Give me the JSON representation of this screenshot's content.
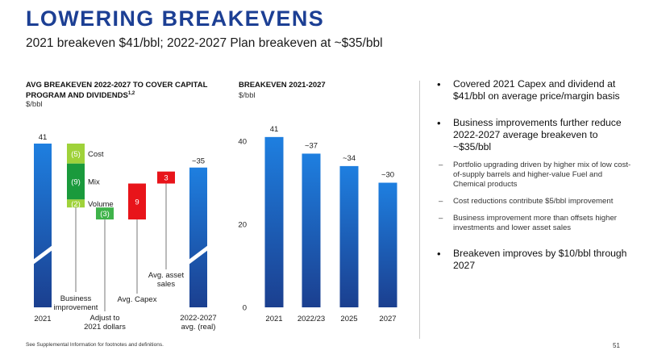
{
  "header": {
    "title": "LOWERING BREAKEVENS",
    "subtitle": "2021 breakeven $41/bbl; 2022-2027 Plan breakeven at ~$35/bbl"
  },
  "colors": {
    "accent": "#1c3f94",
    "bar_top": "#1e7fe0",
    "bar_bottom": "#1b3f8f",
    "green_dark": "#1a9a3c",
    "green_mid": "#3fb34a",
    "green_light": "#9fd23a",
    "red": "#e8141a"
  },
  "chart_data": [
    {
      "type": "waterfall",
      "title": "AVG BREAKEVEN 2022-2027 TO COVER CAPITAL PROGRAM AND DIVIDENDS",
      "title_superscript": "1,2",
      "ylabel": "$/bbl",
      "ylim": [
        0,
        41
      ],
      "steps": [
        {
          "label": "2021",
          "value": 41,
          "value_label": "41",
          "kind": "total"
        },
        {
          "label": "Business improvement",
          "value": -16,
          "kind": "decrease",
          "components": [
            {
              "name": "Cost",
              "value": -5,
              "value_label": "(5)"
            },
            {
              "name": "Mix",
              "value": -9,
              "value_label": "(9)"
            },
            {
              "name": "Volume",
              "value": -2,
              "value_label": "(2)"
            }
          ]
        },
        {
          "label": "Adjust to 2021 dollars",
          "value": -3,
          "value_label": "(3)",
          "kind": "decrease"
        },
        {
          "label": "Avg. Capex",
          "value": 9,
          "value_label": "9",
          "kind": "increase"
        },
        {
          "label": "Avg. asset sales",
          "value": 3,
          "value_label": "3",
          "kind": "increase"
        },
        {
          "label": "2022-2027 avg. (real)",
          "value": 35,
          "value_label": "~35",
          "kind": "total"
        }
      ]
    },
    {
      "type": "bar",
      "title": "BREAKEVEN 2021-2027",
      "ylabel": "$/bbl",
      "categories": [
        "2021",
        "2022/23",
        "2025",
        "2027"
      ],
      "values": [
        41,
        37,
        34,
        30
      ],
      "value_labels": [
        "41",
        "~37",
        "~34",
        "~30"
      ],
      "yticks": [
        0,
        20,
        40
      ],
      "ylim": [
        0,
        41
      ]
    }
  ],
  "bullets": [
    {
      "text": "Covered 2021 Capex and dividend at $41/bbl on average price/margin basis",
      "sub": []
    },
    {
      "text": "Business improvements further reduce 2022-2027 average breakeven to ~$35/bbl",
      "sub": [
        "Portfolio upgrading driven by higher mix of low cost-of-supply barrels and higher-value Fuel and Chemical products",
        "Cost reductions contribute $5/bbl improvement",
        "Business improvement more than offsets higher investments and lower asset sales"
      ]
    },
    {
      "text": "Breakeven improves by $10/bbl through 2027",
      "sub": []
    }
  ],
  "footer": {
    "footnote": "See Supplemental Information for footnotes and definitions.",
    "page_number": "51"
  }
}
